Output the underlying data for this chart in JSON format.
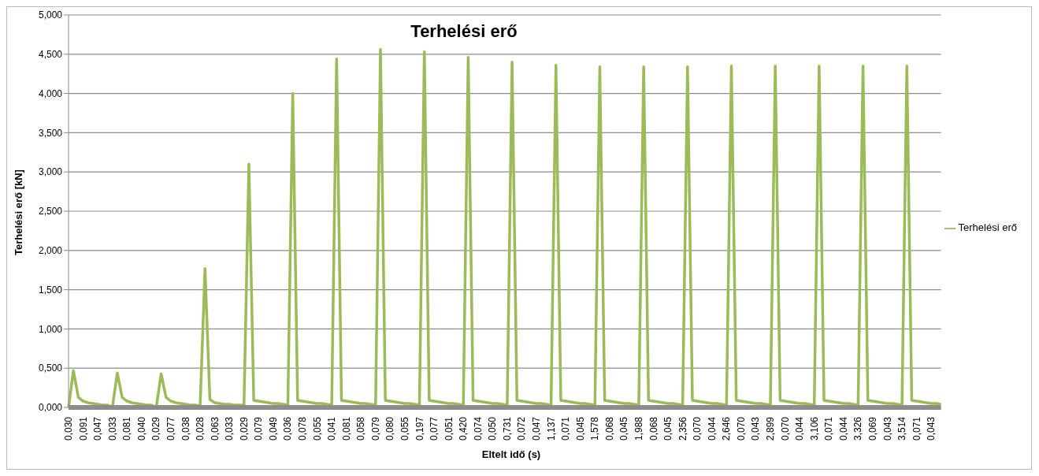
{
  "chart_data": {
    "type": "line",
    "title": "Terhelési erő",
    "xlabel": "Eltelt idő (s)",
    "ylabel": "Terhelési erő [kN]",
    "categories": [
      "0,030",
      null,
      null,
      "0,091",
      null,
      null,
      "0,047",
      null,
      null,
      "0,033",
      null,
      null,
      "0,081",
      null,
      null,
      "0,040",
      null,
      null,
      "0,029",
      null,
      null,
      "0,077",
      null,
      null,
      "0,038",
      null,
      null,
      "0,028",
      null,
      null,
      "0,063",
      null,
      null,
      "0,033",
      null,
      null,
      "0,029",
      null,
      null,
      "0,079",
      null,
      null,
      "0,049",
      null,
      null,
      "0,036",
      null,
      null,
      "0,078",
      null,
      null,
      "0,055",
      null,
      null,
      "0,041",
      null,
      null,
      "0,081",
      null,
      null,
      "0,058",
      null,
      null,
      "0,079",
      null,
      null,
      "0,080",
      null,
      null,
      "0,055",
      null,
      null,
      "0,197",
      null,
      null,
      "0,077",
      null,
      null,
      "0,051",
      null,
      null,
      "0,420",
      null,
      null,
      "0,074",
      null,
      null,
      "0,050",
      null,
      null,
      "0,731",
      null,
      null,
      "0,072",
      null,
      null,
      "0,047",
      null,
      null,
      "1,137",
      null,
      null,
      "0,071",
      null,
      null,
      "0,045",
      null,
      null,
      "1,578",
      null,
      null,
      "0,068",
      null,
      null,
      "0,045",
      null,
      null,
      "1,988",
      null,
      null,
      "0,068",
      null,
      null,
      "0,045",
      null,
      null,
      "2,356",
      null,
      null,
      "0,070",
      null,
      null,
      "0,044",
      null,
      null,
      "2,646",
      null,
      null,
      "0,070",
      null,
      null,
      "0,043",
      null,
      null,
      "2,899",
      null,
      null,
      "0,070",
      null,
      null,
      "0,044",
      null,
      null,
      "3,106",
      null,
      null,
      "0,071",
      null,
      null,
      "0,044",
      null,
      null,
      "3,326",
      null,
      null,
      "0,069",
      null,
      null,
      "0,043",
      null,
      null,
      "3,514",
      null,
      null,
      "0,071",
      null,
      null,
      "0,043",
      null,
      null
    ],
    "series": [
      {
        "name": "Terhelési erő",
        "color": "#9bbb59",
        "values": [
          0.0,
          0.47,
          0.13,
          0.08,
          0.06,
          0.05,
          0.04,
          0.03,
          0.03,
          0.0,
          0.44,
          0.13,
          0.08,
          0.06,
          0.05,
          0.04,
          0.03,
          0.03,
          0.0,
          0.43,
          0.13,
          0.08,
          0.06,
          0.05,
          0.04,
          0.03,
          0.03,
          0.02,
          1.77,
          0.1,
          0.06,
          0.05,
          0.04,
          0.04,
          0.03,
          0.03,
          0.03,
          3.1,
          0.09,
          0.08,
          0.07,
          0.06,
          0.05,
          0.05,
          0.04,
          0.03,
          4.0,
          0.09,
          0.08,
          0.07,
          0.06,
          0.05,
          0.05,
          0.04,
          0.03,
          4.44,
          0.09,
          0.08,
          0.07,
          0.06,
          0.05,
          0.05,
          0.04,
          0.03,
          4.56,
          0.09,
          0.08,
          0.07,
          0.06,
          0.05,
          0.05,
          0.04,
          0.03,
          4.53,
          0.09,
          0.08,
          0.07,
          0.06,
          0.05,
          0.05,
          0.04,
          0.03,
          4.46,
          0.09,
          0.08,
          0.07,
          0.06,
          0.05,
          0.05,
          0.04,
          0.03,
          4.4,
          0.09,
          0.08,
          0.07,
          0.06,
          0.05,
          0.05,
          0.04,
          0.03,
          4.36,
          0.09,
          0.08,
          0.07,
          0.06,
          0.05,
          0.05,
          0.04,
          0.03,
          4.34,
          0.09,
          0.08,
          0.07,
          0.06,
          0.05,
          0.05,
          0.04,
          0.03,
          4.34,
          0.09,
          0.08,
          0.07,
          0.06,
          0.05,
          0.05,
          0.04,
          0.03,
          4.34,
          0.09,
          0.08,
          0.07,
          0.06,
          0.05,
          0.05,
          0.04,
          0.03,
          4.35,
          0.09,
          0.08,
          0.07,
          0.06,
          0.05,
          0.05,
          0.04,
          0.03,
          4.35,
          0.09,
          0.08,
          0.07,
          0.06,
          0.05,
          0.05,
          0.04,
          0.03,
          4.35,
          0.09,
          0.08,
          0.07,
          0.06,
          0.05,
          0.05,
          0.04,
          0.03,
          4.35,
          0.09,
          0.08,
          0.07,
          0.06,
          0.05,
          0.05,
          0.04,
          0.03,
          4.35,
          0.09,
          0.08,
          0.07,
          0.06,
          0.05,
          0.05,
          0.04
        ]
      }
    ],
    "ylim": [
      0,
      5
    ],
    "yticks": [
      {
        "value": 0,
        "label": "0,000"
      },
      {
        "value": 0.5,
        "label": "0,500"
      },
      {
        "value": 1,
        "label": "1,000"
      },
      {
        "value": 1.5,
        "label": "1,500"
      },
      {
        "value": 2,
        "label": "2,000"
      },
      {
        "value": 2.5,
        "label": "2,500"
      },
      {
        "value": 3,
        "label": "3,000"
      },
      {
        "value": 3.5,
        "label": "3,500"
      },
      {
        "value": 4,
        "label": "4,000"
      },
      {
        "value": 4.5,
        "label": "4,500"
      },
      {
        "value": 5,
        "label": "5,000"
      }
    ],
    "grid": "y",
    "legend": "right"
  }
}
